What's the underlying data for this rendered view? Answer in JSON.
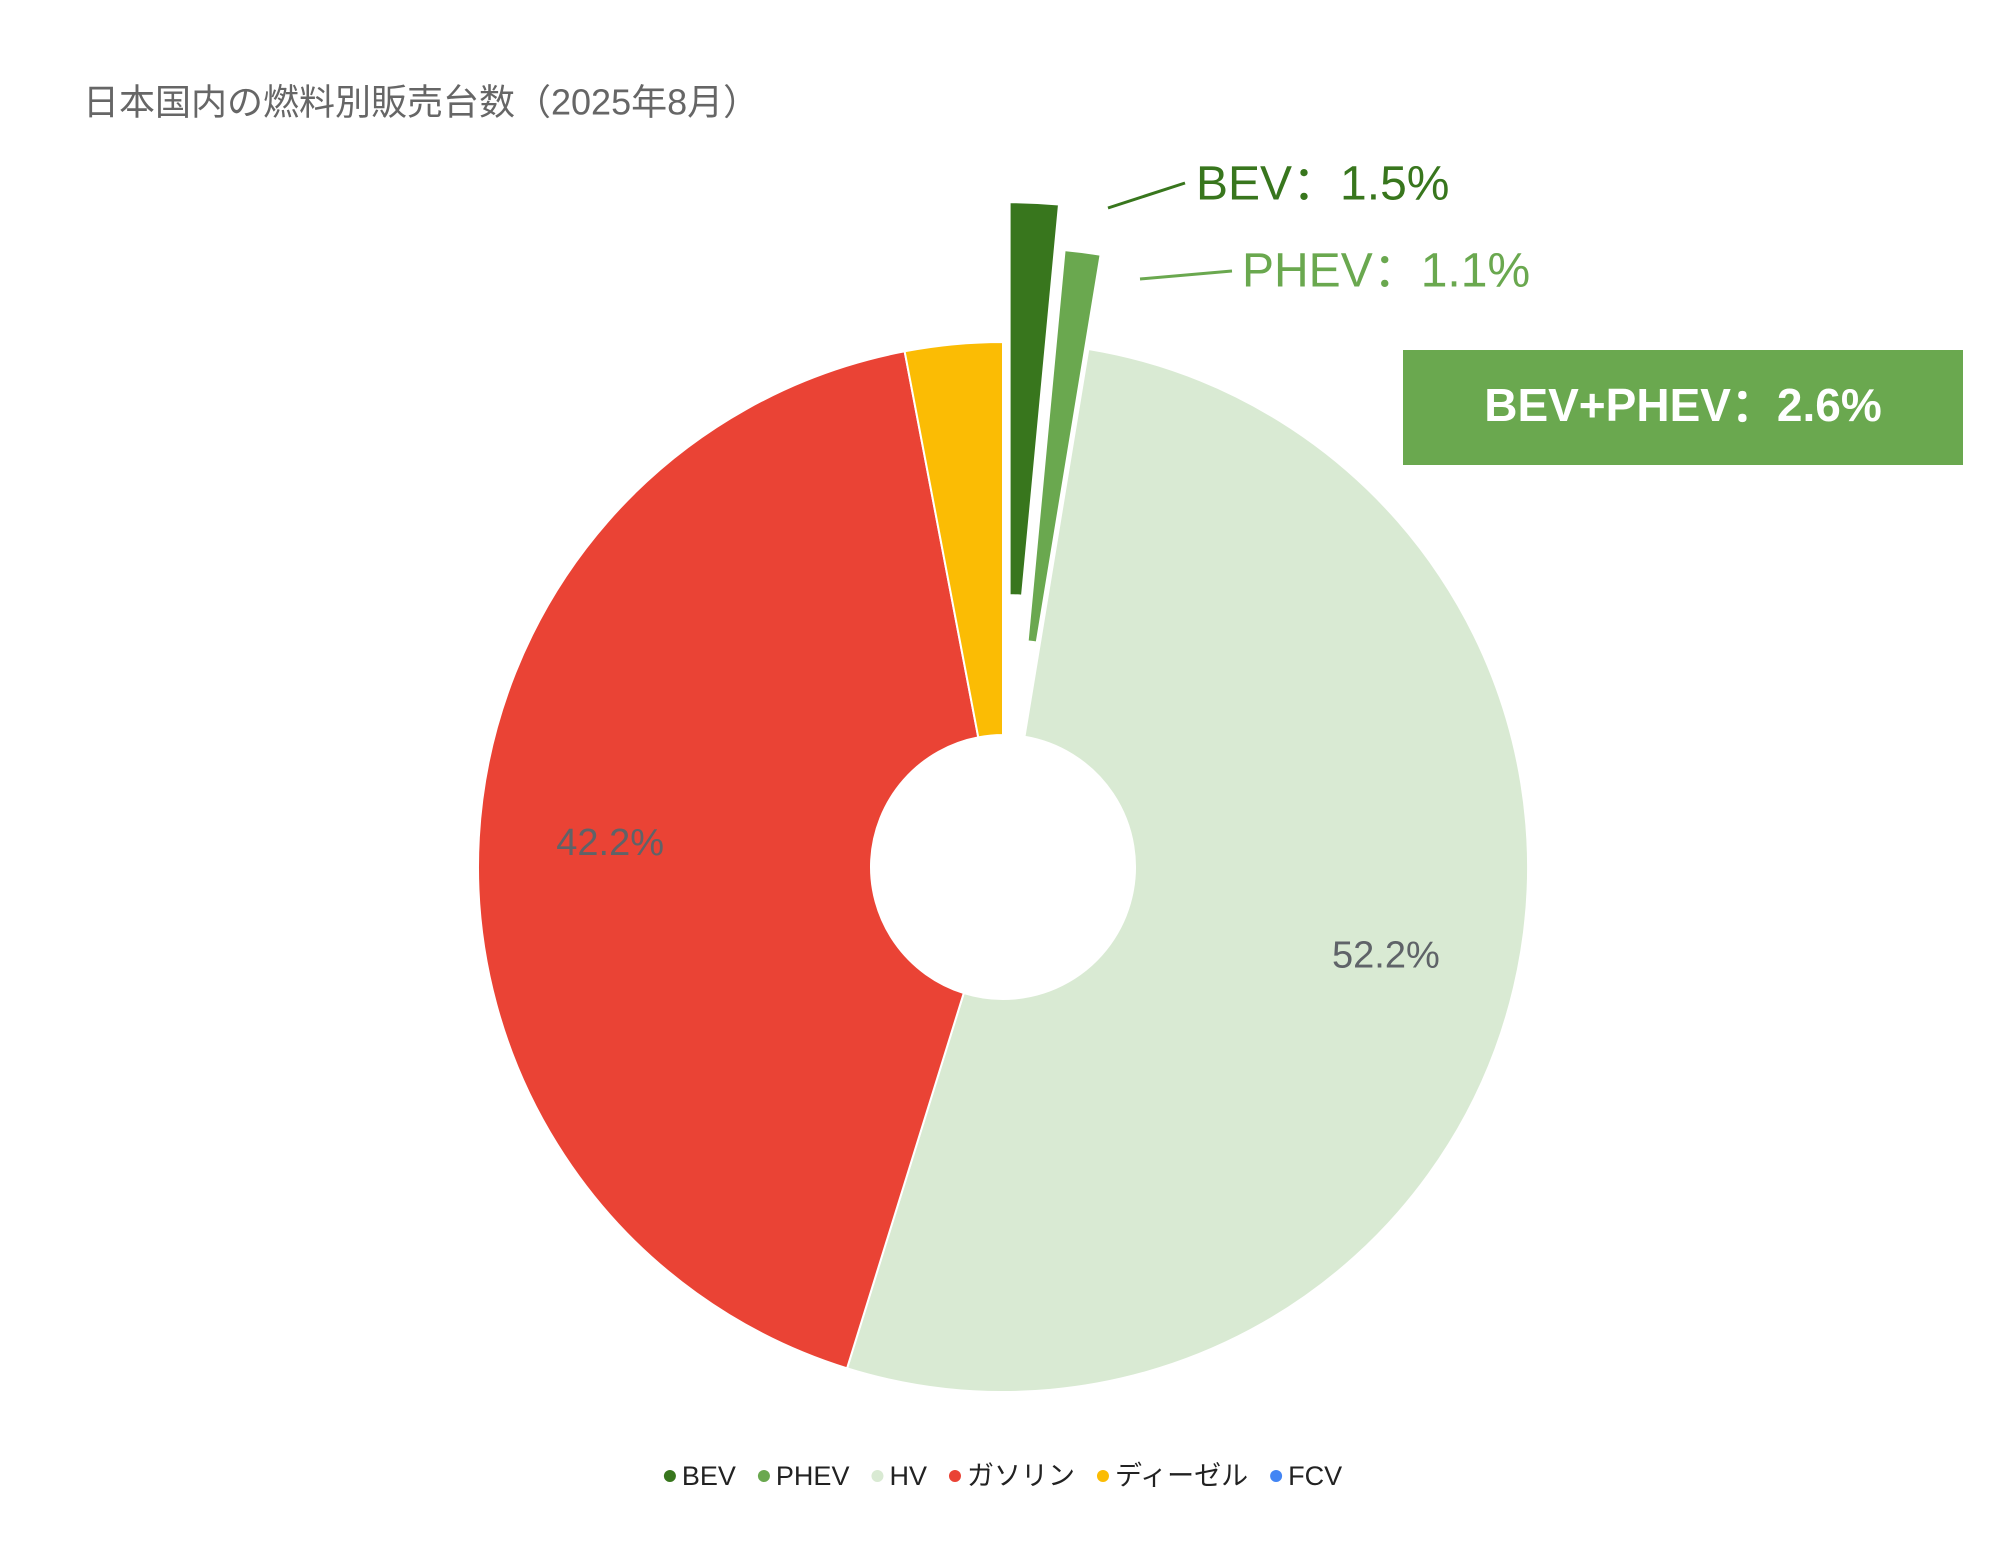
{
  "chart_data": {
    "type": "donut",
    "title": "日本国内の燃料別販売台数（2025年8月）",
    "categories": [
      "BEV",
      "PHEV",
      "HV",
      "ガソリン",
      "ディーゼル",
      "FCV"
    ],
    "values": [
      1.5,
      1.1,
      52.2,
      42.2,
      3.0,
      0.0
    ],
    "value_labels": [
      "BEV：1.5%",
      "PHEV：1.1%",
      "52.2%",
      "42.2%",
      null,
      null
    ],
    "colors": [
      "#38761d",
      "#6aa84f",
      "#d9ead3",
      "#ea4335",
      "#fbbc04",
      "#4285f4"
    ],
    "annotation": "BEV+PHEV：2.6%",
    "legend": "bottom"
  }
}
